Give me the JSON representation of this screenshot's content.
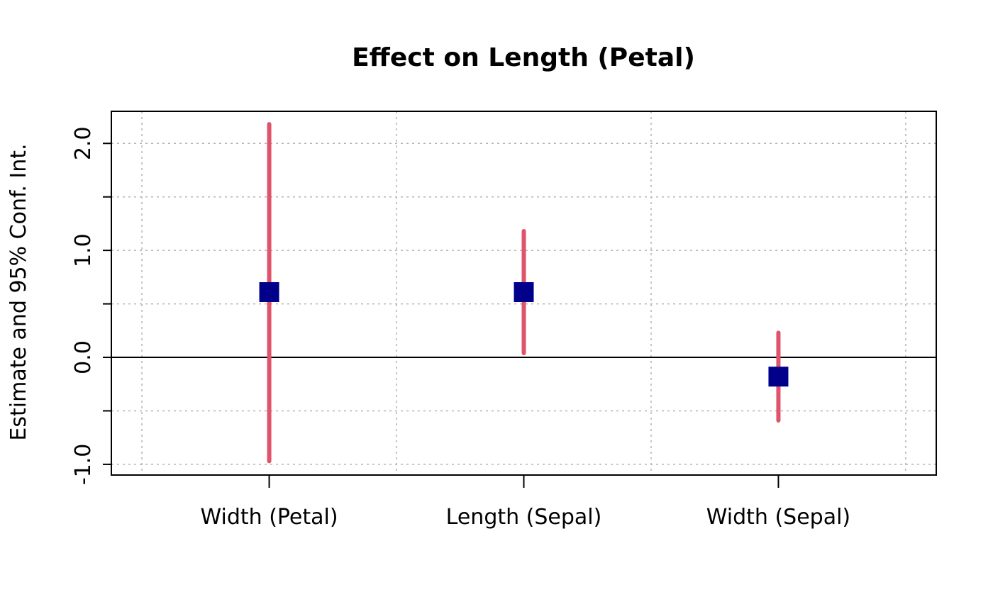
{
  "chart_data": {
    "type": "scatter",
    "title": "Effect on Length (Petal)",
    "xlabel": "",
    "ylabel": "Estimate and 95% Conf. Int.",
    "categories": [
      "Width (Petal)",
      "Length (Sepal)",
      "Width (Sepal)"
    ],
    "series": [
      {
        "estimate": [
          0.61,
          0.61,
          -0.18
        ],
        "ci_low": [
          -0.97,
          0.04,
          -0.59
        ],
        "ci_high": [
          2.18,
          1.18,
          0.23
        ]
      }
    ],
    "ylim": [
      -1.1,
      2.3
    ],
    "yticks": [
      -1.0,
      -0.5,
      0.0,
      0.5,
      1.0,
      1.5,
      2.0
    ],
    "ytick_labels": [
      "-1.0",
      "",
      "0.0",
      "",
      "1.0",
      "",
      "2.0"
    ],
    "xlim": [
      0.38,
      3.62
    ],
    "xgrid": [
      0.5,
      1.5,
      2.5,
      3.5
    ],
    "grid": true,
    "reference_line_y": 0,
    "colors": {
      "estimate": "#00008b",
      "interval": "#df536b",
      "grid": "#b3b3b3"
    }
  }
}
